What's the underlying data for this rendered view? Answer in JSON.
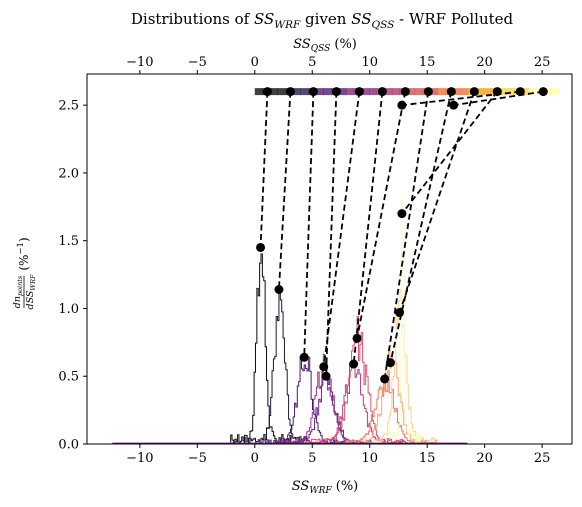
{
  "chart_data": {
    "type": "line",
    "title": {
      "pre": "Distributions of ",
      "sym1": "SS",
      "sub1": "WRF",
      "mid": " given ",
      "sym2": "SS",
      "sub2": "QSS",
      "post": " - WRF Polluted"
    },
    "xlabel": {
      "sym": "SS",
      "sub": "WRF",
      "unit": " (%)"
    },
    "top_xlabel": {
      "sym": "SS",
      "sub": "QSS",
      "unit": " (%)"
    },
    "ylabel": {
      "num": "dn",
      "num_sub": "points",
      "den": "dSS",
      "den_sub": "WRF",
      "unit": "(%",
      "unit_exp": "−1",
      "unit_close": ")"
    },
    "xlim": [
      -14.6,
      27.6
    ],
    "ylim": [
      0,
      2.73
    ],
    "xticks": [
      -10,
      -5,
      0,
      5,
      10,
      15,
      20,
      25
    ],
    "xtick_labels": [
      "−10",
      "−5",
      "0",
      "5",
      "10",
      "15",
      "20",
      "25"
    ],
    "yticks": [
      0,
      0.5,
      1.0,
      1.5,
      2.0,
      2.5
    ],
    "ytick_labels": [
      "0.0",
      "0.5",
      "1.0",
      "1.5",
      "2.0",
      "2.5"
    ],
    "grid": false,
    "legend": "none",
    "qss_band": {
      "y": 2.6,
      "x_start": 0,
      "x_end": 26.5,
      "colors": [
        "#000004",
        "#1b0c41",
        "#4a0c6b",
        "#781c6d",
        "#a52c60",
        "#cf4446",
        "#ed6925",
        "#fb9b06",
        "#f7d13d",
        "#fcffa4"
      ]
    },
    "distributions": [
      {
        "color": "#000004",
        "peak_x": 0.5,
        "peak_y": 1.45,
        "width": 0.35,
        "qss": 1.1
      },
      {
        "color": "#12082e",
        "peak_x": 2.1,
        "peak_y": 1.14,
        "width": 0.45,
        "qss": 3.1
      },
      {
        "color": "#3b0f70",
        "peak_x": 4.3,
        "peak_y": 0.64,
        "width": 0.6,
        "qss": 5.1
      },
      {
        "color": "#641a80",
        "peak_x": 6.2,
        "peak_y": 0.5,
        "width": 0.7,
        "qss": 7.1
      },
      {
        "color": "#8c2981",
        "peak_x": 6.0,
        "peak_y": 0.57,
        "width": 0.7,
        "qss": 9.1
      },
      {
        "color": "#b73779",
        "peak_x": 8.6,
        "peak_y": 0.59,
        "width": 0.75,
        "qss": 11.1
      },
      {
        "color": "#de4968",
        "peak_x": 8.9,
        "peak_y": 0.78,
        "width": 0.75,
        "qss": 13.1
      },
      {
        "color": "#f7705c",
        "peak_x": 11.3,
        "peak_y": 0.48,
        "width": 0.8,
        "qss": 15.1
      },
      {
        "color": "#fe9f6d",
        "peak_x": 11.8,
        "peak_y": 0.6,
        "width": 0.7,
        "qss": 17.1
      },
      {
        "color": "#fecf92",
        "peak_x": 12.6,
        "peak_y": 0.97,
        "width": 0.5,
        "qss": 19.1
      },
      {
        "color": "#fcfdbf",
        "peak_x": 12.8,
        "peak_y": 2.5,
        "width": 0.1,
        "qss": 21.1
      }
    ],
    "connectors": [
      {
        "qss": 1.1,
        "mean_x": 0.5,
        "mean_y": 1.45
      },
      {
        "qss": 3.1,
        "mean_x": 2.1,
        "mean_y": 1.14
      },
      {
        "qss": 5.1,
        "mean_x": 4.3,
        "mean_y": 0.64
      },
      {
        "qss": 7.1,
        "mean_x": 6.2,
        "mean_y": 0.5
      },
      {
        "qss": 9.1,
        "mean_x": 6.0,
        "mean_y": 0.57
      },
      {
        "qss": 11.1,
        "mean_x": 8.6,
        "mean_y": 0.59
      },
      {
        "qss": 13.1,
        "mean_x": 8.9,
        "mean_y": 0.78
      },
      {
        "qss": 15.1,
        "mean_x": 11.3,
        "mean_y": 0.48
      },
      {
        "qss": 17.1,
        "mean_x": 11.8,
        "mean_y": 0.6
      },
      {
        "qss": 19.1,
        "mean_x": 12.6,
        "mean_y": 0.97
      },
      {
        "qss": 21.1,
        "mean_x": 12.8,
        "mean_y": 1.7
      },
      {
        "qss": 23.1,
        "mean_x": 12.8,
        "mean_y": 2.5
      },
      {
        "qss": 25.1,
        "mean_x": 17.3,
        "mean_y": 2.5
      }
    ]
  }
}
